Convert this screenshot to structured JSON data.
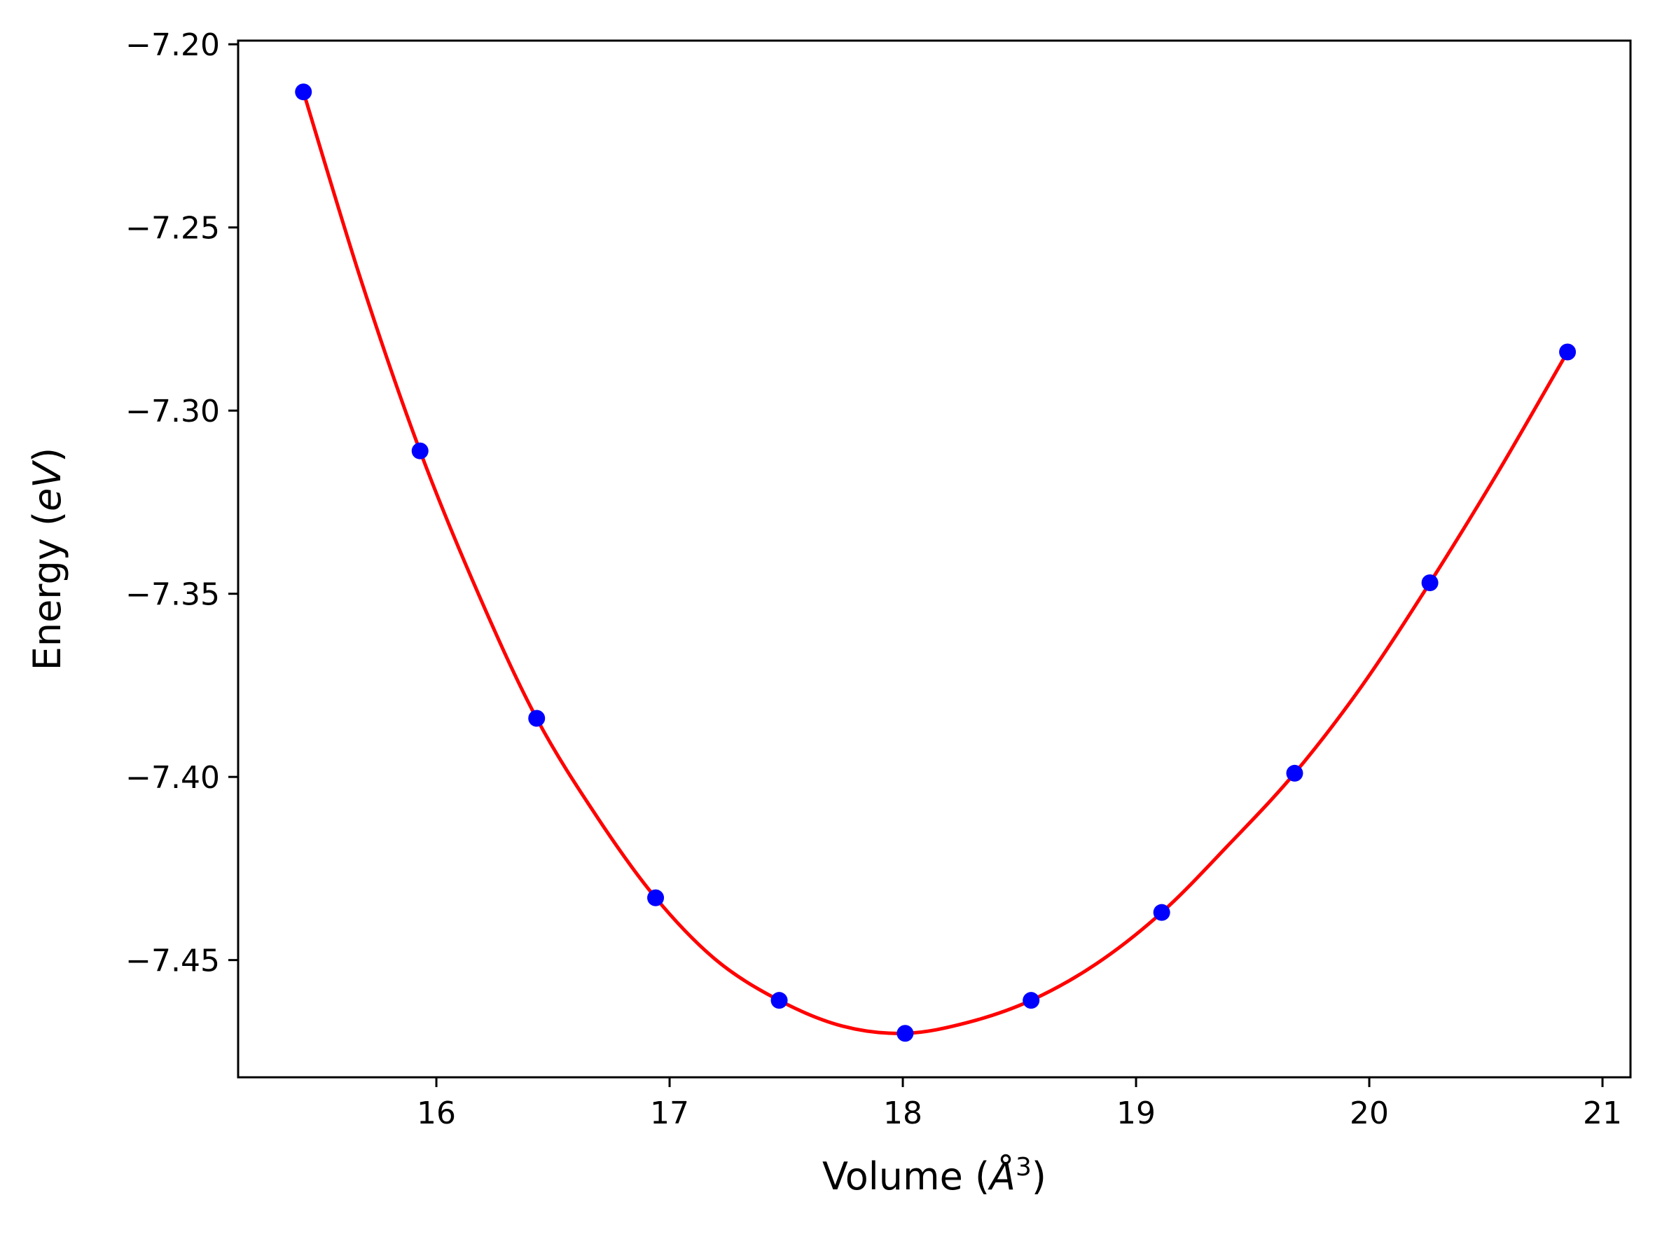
{
  "chart_data": {
    "type": "line",
    "title": "",
    "xlabel": {
      "prefix": "Volume (",
      "symbol": "Å",
      "sup": "3",
      "suffix": ")"
    },
    "ylabel": {
      "prefix": "Energy (",
      "symbol": "eV",
      "suffix": ")"
    },
    "xlim": [
      15.15,
      21.12
    ],
    "ylim": [
      -7.482,
      -7.199
    ],
    "xticks": [
      16,
      17,
      18,
      19,
      20,
      21
    ],
    "xtick_labels": [
      "16",
      "17",
      "18",
      "19",
      "20",
      "21"
    ],
    "yticks": [
      -7.2,
      -7.25,
      -7.3,
      -7.35,
      -7.4,
      -7.45
    ],
    "ytick_labels": [
      "−7.20",
      "−7.25",
      "−7.30",
      "−7.35",
      "−7.40",
      "−7.45"
    ],
    "grid": false,
    "legend": "none",
    "series": [
      {
        "kind": "points",
        "color": "#0000ff",
        "x": [
          15.43,
          15.93,
          16.43,
          16.94,
          17.47,
          18.01,
          18.55,
          19.11,
          19.68,
          20.26,
          20.85
        ],
        "y": [
          -7.213,
          -7.311,
          -7.384,
          -7.433,
          -7.461,
          -7.47,
          -7.461,
          -7.437,
          -7.399,
          -7.347,
          -7.284
        ]
      },
      {
        "kind": "fit-curve",
        "color": "#ff0000",
        "x": [
          15.43,
          15.68,
          15.93,
          16.18,
          16.43,
          16.69,
          16.94,
          17.2,
          17.47,
          17.74,
          18.01,
          18.28,
          18.55,
          18.83,
          19.11,
          19.39,
          19.68,
          19.97,
          20.26,
          20.55,
          20.85
        ],
        "y": [
          -7.213,
          -7.265,
          -7.311,
          -7.35,
          -7.384,
          -7.411,
          -7.433,
          -7.45,
          -7.461,
          -7.468,
          -7.47,
          -7.467,
          -7.461,
          -7.451,
          -7.437,
          -7.419,
          -7.399,
          -7.375,
          -7.347,
          -7.317,
          -7.284
        ]
      }
    ]
  }
}
